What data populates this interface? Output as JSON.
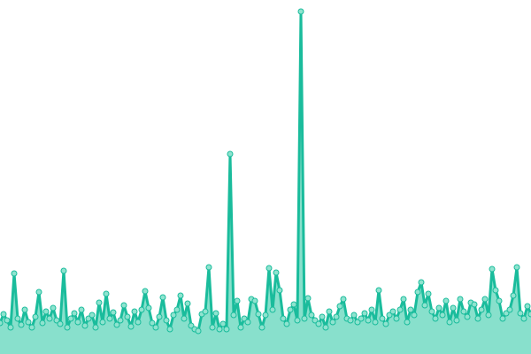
{
  "chart_data": {
    "type": "area",
    "title": "",
    "xlabel": "",
    "ylabel": "",
    "ylim": [
      0,
      400
    ],
    "grid": false,
    "legend": "none",
    "colors": {
      "line": "#1abc9c",
      "fill": "#88e0cc",
      "marker_fill": "#8fe3cf",
      "marker_stroke": "#1abc9c"
    },
    "series": [
      {
        "values": [
          35,
          45,
          38,
          30,
          91,
          40,
          33,
          50,
          36,
          30,
          42,
          70,
          35,
          48,
          40,
          52,
          38,
          34,
          94,
          30,
          40,
          46,
          36,
          50,
          32,
          40,
          44,
          30,
          58,
          36,
          68,
          40,
          47,
          33,
          38,
          55,
          42,
          31,
          48,
          36,
          50,
          71,
          52,
          35,
          30,
          42,
          64,
          38,
          28,
          44,
          50,
          66,
          40,
          57,
          32,
          28,
          26,
          45,
          48,
          98,
          30,
          46,
          28,
          34,
          28,
          226,
          44,
          60,
          30,
          40,
          36,
          62,
          60,
          45,
          30,
          44,
          97,
          50,
          92,
          72,
          40,
          34,
          50,
          56,
          38,
          387,
          40,
          63,
          44,
          38,
          34,
          42,
          30,
          48,
          36,
          42,
          54,
          62,
          40,
          38,
          44,
          36,
          40,
          46,
          38,
          50,
          36,
          72,
          40,
          34,
          44,
          48,
          40,
          50,
          62,
          36,
          50,
          44,
          70,
          81,
          55,
          68,
          48,
          40,
          52,
          44,
          60,
          36,
          52,
          38,
          62,
          48,
          42,
          58,
          56,
          40,
          50,
          62,
          44,
          96,
          72,
          60,
          40,
          46,
          50,
          66,
          98,
          46,
          40,
          54,
          45
        ]
      }
    ]
  }
}
